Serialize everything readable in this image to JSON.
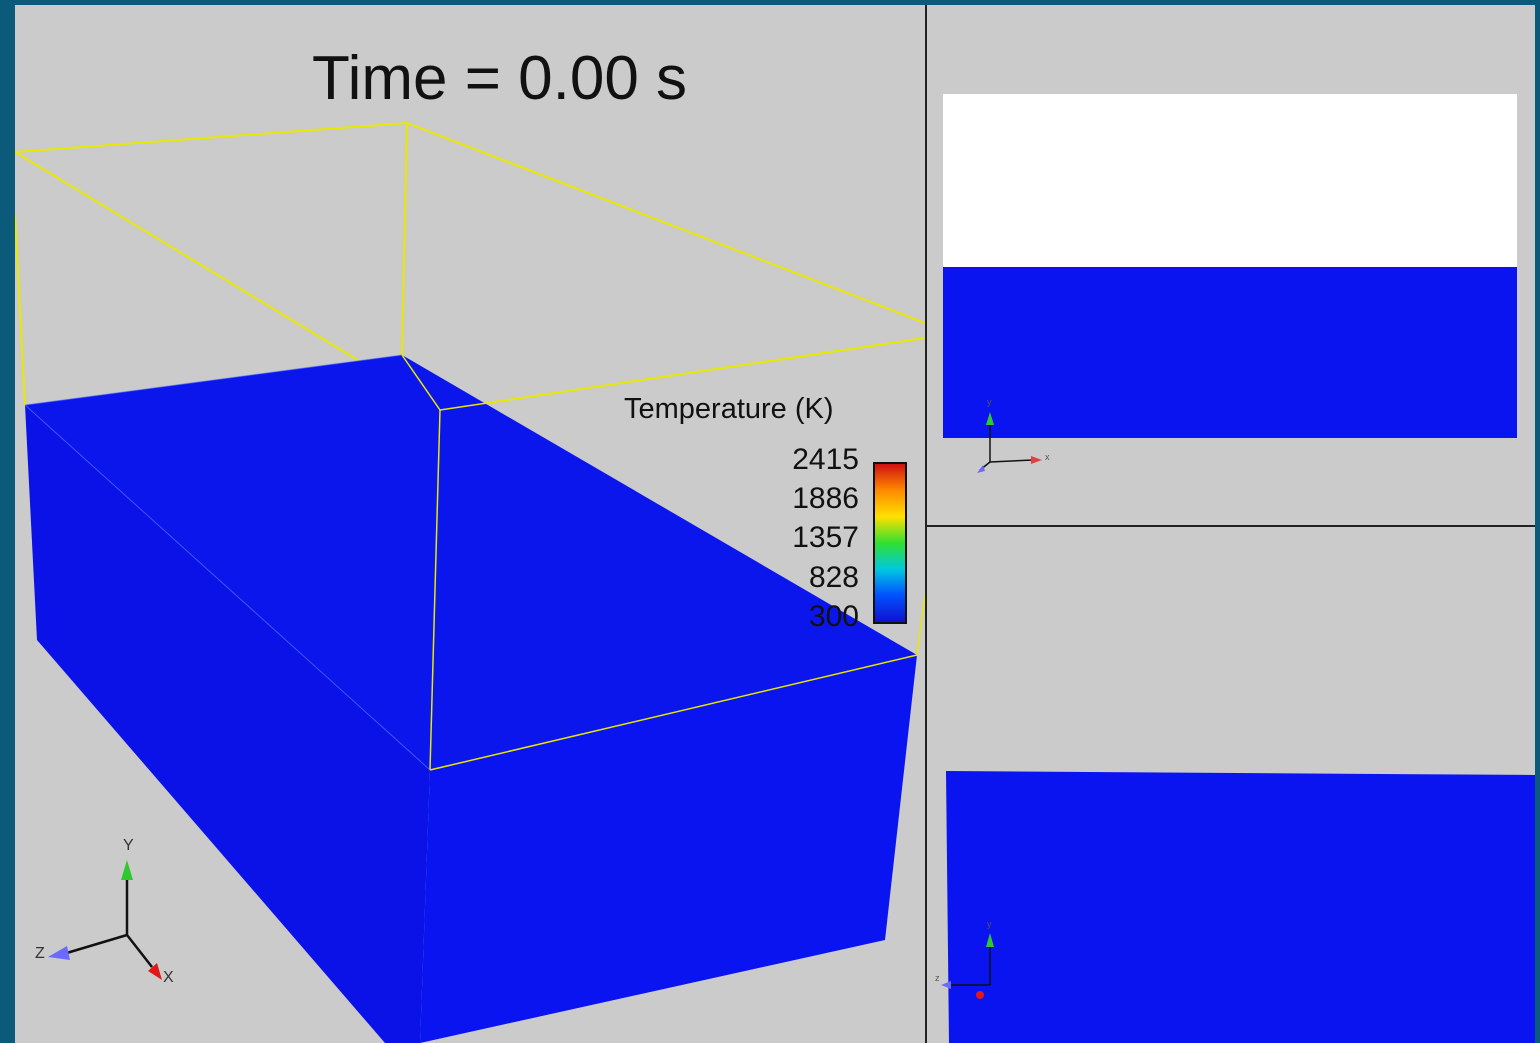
{
  "main_view": {
    "time_label": "Time = 0.00 s",
    "legend": {
      "title": "Temperature (K)",
      "ticks": [
        "2415",
        "1886",
        "1357",
        "828",
        "300"
      ],
      "colormap": [
        "#d01010",
        "#ff8a00",
        "#ffe000",
        "#30e030",
        "#00c8e0",
        "#0050ff",
        "#1010d0"
      ]
    },
    "triad": {
      "y_label": "Y",
      "z_label": "Z",
      "x_label": "X"
    },
    "colors": {
      "background": "#cbcbcb",
      "block": "#0a14f0",
      "bounding_box": "#e8e800"
    }
  },
  "top_view": {
    "triad": {
      "y_label": "y",
      "x_label": "x"
    },
    "colors": {
      "upper_region": "#ffffff",
      "lower_region": "#0a14f0"
    }
  },
  "bottom_view": {
    "triad": {
      "y_label": "y",
      "z_label": "z"
    },
    "colors": {
      "region": "#0a14f0"
    }
  }
}
